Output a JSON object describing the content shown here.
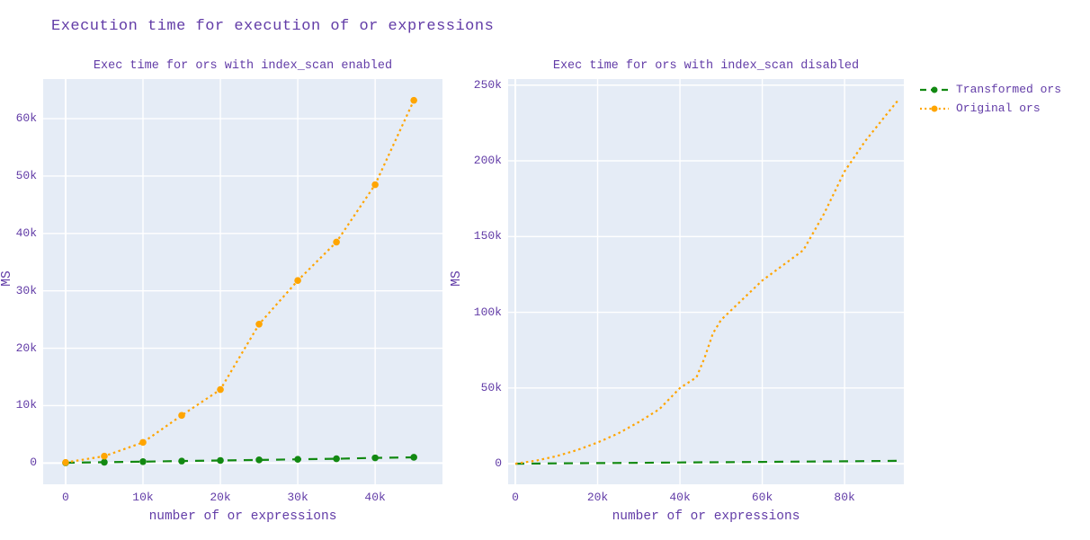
{
  "page": {
    "title": "Execution time for execution of or expressions"
  },
  "colors": {
    "text": "#623CA7",
    "plot_bg": "#E5ECF6",
    "grid": "#FFFFFF",
    "transformed": "#128912",
    "original": "#FFA500"
  },
  "legend": {
    "position": "top-right-outside",
    "items": [
      {
        "label": "Transformed ors",
        "color": "#128912",
        "dash": "dash"
      },
      {
        "label": "Original ors",
        "color": "#FFA500",
        "dash": "dot"
      }
    ]
  },
  "chart_data": [
    {
      "type": "line",
      "title": "Exec time for ors with index_scan enabled",
      "xlabel": "number of or expressions",
      "ylabel": "MS",
      "grid": true,
      "xlim": [
        -2900,
        48700
      ],
      "ylim": [
        -3700,
        66900
      ],
      "x_tick_vals": [
        0,
        10000,
        20000,
        30000,
        40000
      ],
      "x_tick_labels": [
        "0",
        "10k",
        "20k",
        "30k",
        "40k"
      ],
      "y_tick_vals": [
        0,
        10000,
        20000,
        30000,
        40000,
        50000,
        60000
      ],
      "y_tick_labels": [
        "0",
        "10k",
        "20k",
        "30k",
        "40k",
        "50k",
        "60k"
      ],
      "series": [
        {
          "name": "Transformed ors",
          "color": "#128912",
          "dash": "dash",
          "markers": true,
          "x": [
            0,
            5000,
            10000,
            15000,
            20000,
            25000,
            30000,
            35000,
            40000,
            45000
          ],
          "y": [
            50,
            150,
            250,
            350,
            450,
            550,
            650,
            750,
            900,
            1000
          ]
        },
        {
          "name": "Original ors",
          "color": "#FFA500",
          "dash": "dot",
          "markers": true,
          "x": [
            0,
            5000,
            10000,
            15000,
            20000,
            25000,
            30000,
            35000,
            40000,
            45000
          ],
          "y": [
            100,
            1200,
            3600,
            8300,
            12800,
            24200,
            31800,
            38500,
            48500,
            63200
          ]
        }
      ]
    },
    {
      "type": "line",
      "title": "Exec time for ors with index_scan disabled",
      "xlabel": "number of or expressions",
      "ylabel": "MS",
      "grid": true,
      "xlim": [
        -1750,
        94400
      ],
      "ylim": [
        -13600,
        254000
      ],
      "x_tick_vals": [
        0,
        20000,
        40000,
        60000,
        80000
      ],
      "x_tick_labels": [
        "0",
        "20k",
        "40k",
        "60k",
        "80k"
      ],
      "y_tick_vals": [
        0,
        50000,
        100000,
        150000,
        200000,
        250000
      ],
      "y_tick_labels": [
        "0",
        "50k",
        "100k",
        "150k",
        "200k",
        "250k"
      ],
      "series": [
        {
          "name": "Transformed ors",
          "color": "#128912",
          "dash": "dash",
          "markers": false,
          "x": [
            0,
            10000,
            20000,
            30000,
            40000,
            50000,
            60000,
            70000,
            80000,
            90000,
            93000
          ],
          "y": [
            0,
            200,
            400,
            600,
            800,
            1000,
            1200,
            1400,
            1600,
            1800,
            1900
          ]
        },
        {
          "name": "Original ors",
          "color": "#FFA500",
          "dash": "dot",
          "markers": false,
          "x": [
            0,
            5000,
            10000,
            15000,
            20000,
            25000,
            30000,
            35000,
            40000,
            44000,
            46000,
            48000,
            50000,
            55000,
            60000,
            65000,
            70000,
            75000,
            80000,
            85000,
            90000,
            93000
          ],
          "y": [
            0,
            2000,
            5000,
            9000,
            14000,
            20000,
            27500,
            36000,
            50000,
            57000,
            70000,
            86000,
            95000,
            108000,
            121000,
            131000,
            141000,
            165000,
            193000,
            213000,
            230000,
            240000
          ]
        }
      ]
    }
  ]
}
